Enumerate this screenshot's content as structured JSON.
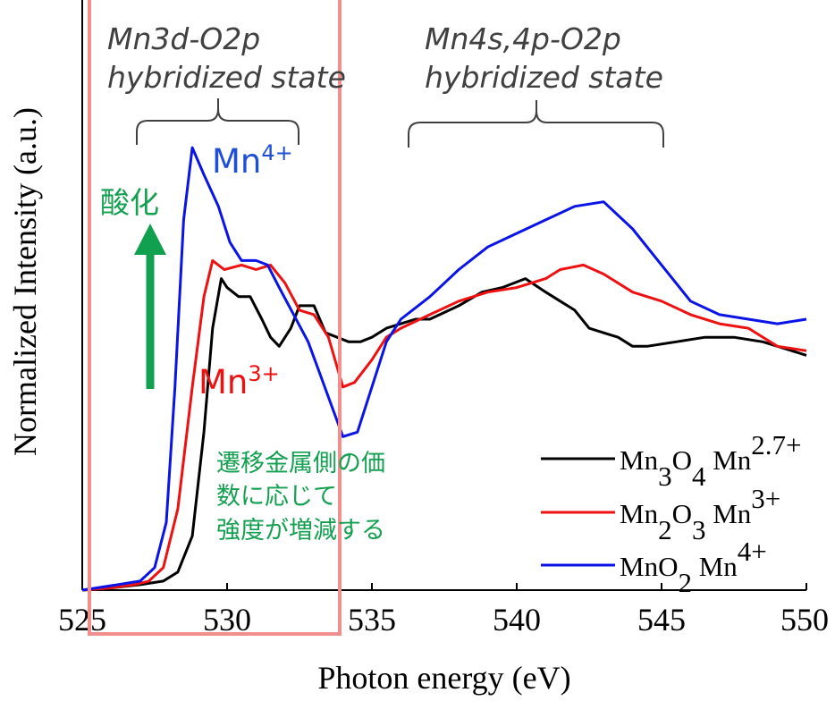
{
  "chart_data": {
    "type": "line",
    "title": "",
    "xlabel": "Photon energy (eV)",
    "ylabel": "Normalized Intensity (a.u.)",
    "xlim": [
      525,
      550
    ],
    "ylim": [
      0,
      1.0
    ],
    "x_ticks": [
      "525",
      "530",
      "535",
      "540",
      "545",
      "550"
    ],
    "y_ticks_shown": false,
    "grid": false,
    "legend_position": "bottom-right",
    "series": [
      {
        "name": "Mn3O4 Mn2.7+",
        "color": "#000000",
        "points": [
          [
            525,
            0
          ],
          [
            526,
            0.005
          ],
          [
            527,
            0.012
          ],
          [
            527.8,
            0.02
          ],
          [
            528.3,
            0.04
          ],
          [
            528.8,
            0.12
          ],
          [
            529.2,
            0.35
          ],
          [
            529.5,
            0.58
          ],
          [
            529.8,
            0.69
          ],
          [
            530.0,
            0.67
          ],
          [
            530.4,
            0.65
          ],
          [
            530.8,
            0.65
          ],
          [
            531.2,
            0.6
          ],
          [
            531.5,
            0.56
          ],
          [
            531.8,
            0.54
          ],
          [
            532.2,
            0.58
          ],
          [
            532.5,
            0.63
          ],
          [
            533.0,
            0.63
          ],
          [
            533.4,
            0.57
          ],
          [
            533.8,
            0.56
          ],
          [
            534.2,
            0.55
          ],
          [
            534.6,
            0.55
          ],
          [
            535.0,
            0.56
          ],
          [
            535.5,
            0.58
          ],
          [
            536,
            0.59
          ],
          [
            536.5,
            0.6
          ],
          [
            537,
            0.6
          ],
          [
            538,
            0.63
          ],
          [
            538.8,
            0.66
          ],
          [
            539.5,
            0.67
          ],
          [
            540.3,
            0.69
          ],
          [
            541.0,
            0.66
          ],
          [
            541.5,
            0.64
          ],
          [
            542.0,
            0.62
          ],
          [
            542.5,
            0.58
          ],
          [
            543.0,
            0.57
          ],
          [
            543.5,
            0.56
          ],
          [
            544.0,
            0.54
          ],
          [
            544.5,
            0.54
          ],
          [
            545.5,
            0.55
          ],
          [
            546.5,
            0.56
          ],
          [
            547.5,
            0.56
          ],
          [
            548.5,
            0.55
          ],
          [
            549.5,
            0.53
          ],
          [
            550,
            0.52
          ]
        ]
      },
      {
        "name": "Mn2O3 Mn3+",
        "color": "#ee1111",
        "points": [
          [
            525,
            0
          ],
          [
            526,
            0.005
          ],
          [
            526.8,
            0.012
          ],
          [
            527.3,
            0.02
          ],
          [
            527.8,
            0.05
          ],
          [
            528.3,
            0.18
          ],
          [
            528.8,
            0.45
          ],
          [
            529.2,
            0.65
          ],
          [
            529.5,
            0.73
          ],
          [
            529.9,
            0.71
          ],
          [
            530.5,
            0.72
          ],
          [
            531.0,
            0.71
          ],
          [
            531.5,
            0.72
          ],
          [
            532.0,
            0.68
          ],
          [
            532.5,
            0.62
          ],
          [
            533.0,
            0.61
          ],
          [
            533.5,
            0.56
          ],
          [
            534.0,
            0.45
          ],
          [
            534.4,
            0.46
          ],
          [
            535,
            0.51
          ],
          [
            535.5,
            0.56
          ],
          [
            536,
            0.58
          ],
          [
            537,
            0.61
          ],
          [
            538,
            0.64
          ],
          [
            539,
            0.66
          ],
          [
            540,
            0.67
          ],
          [
            541,
            0.69
          ],
          [
            541.5,
            0.71
          ],
          [
            542.3,
            0.72
          ],
          [
            543,
            0.7
          ],
          [
            544,
            0.66
          ],
          [
            545,
            0.64
          ],
          [
            546,
            0.61
          ],
          [
            547,
            0.59
          ],
          [
            548,
            0.58
          ],
          [
            549,
            0.54
          ],
          [
            550,
            0.53
          ]
        ]
      },
      {
        "name": "MnO2 Mn4+",
        "color": "#0a14e6",
        "points": [
          [
            525,
            0
          ],
          [
            526,
            0.01
          ],
          [
            527,
            0.02
          ],
          [
            527.5,
            0.05
          ],
          [
            527.9,
            0.15
          ],
          [
            528.2,
            0.45
          ],
          [
            528.5,
            0.82
          ],
          [
            528.8,
            0.98
          ],
          [
            529.2,
            0.92
          ],
          [
            529.7,
            0.85
          ],
          [
            530.1,
            0.77
          ],
          [
            530.5,
            0.73
          ],
          [
            531.0,
            0.73
          ],
          [
            531.4,
            0.72
          ],
          [
            531.8,
            0.67
          ],
          [
            532.3,
            0.61
          ],
          [
            532.8,
            0.55
          ],
          [
            533.2,
            0.48
          ],
          [
            533.6,
            0.41
          ],
          [
            534.0,
            0.34
          ],
          [
            534.5,
            0.35
          ],
          [
            535.0,
            0.45
          ],
          [
            535.5,
            0.55
          ],
          [
            536,
            0.6
          ],
          [
            537,
            0.65
          ],
          [
            538,
            0.71
          ],
          [
            539,
            0.76
          ],
          [
            540,
            0.79
          ],
          [
            541,
            0.82
          ],
          [
            542,
            0.85
          ],
          [
            543,
            0.86
          ],
          [
            544,
            0.8
          ],
          [
            545,
            0.72
          ],
          [
            546,
            0.64
          ],
          [
            547,
            0.61
          ],
          [
            548,
            0.6
          ],
          [
            549,
            0.59
          ],
          [
            550,
            0.6
          ]
        ]
      }
    ]
  },
  "legend": [
    {
      "html": "Mn<tspan baseline-shift=\"sub\">3</tspan>O<tspan baseline-shift=\"sub\">4</tspan> Mn<tspan baseline-shift=\"super\">2.7+</tspan>",
      "color": "#000000"
    },
    {
      "html": "Mn<tspan baseline-shift=\"sub\">2</tspan>O<tspan baseline-shift=\"sub\">3</tspan> Mn<tspan baseline-shift=\"super\">3+</tspan>",
      "color": "#ee1111"
    },
    {
      "html": "MnO<tspan baseline-shift=\"sub\">2</tspan> Mn<tspan baseline-shift=\"super\">4+</tspan>",
      "color": "#0a14e6"
    }
  ],
  "annotations": {
    "region1_line1": "Mn3d-O2p",
    "region1_line2": "hybridized state",
    "region2_line1": "Mn4s,4p-O2p",
    "region2_line2": "hybridized state",
    "mn4_base": "Mn",
    "mn4_sup": "4+",
    "mn3_base": "Mn",
    "mn3_sup": "3+",
    "oxidation": "酸化",
    "note_line1": "遷移金属側の価",
    "note_line2": "数に応じて",
    "note_line3": "強度が増減する"
  },
  "colors": {
    "highlight_box": "#f28e8e",
    "arrow": "#11a050",
    "mn4_label": "#1f4fd6",
    "mn3_label": "#ee1111",
    "note_text": "#14a050",
    "bracket": "#404040"
  }
}
